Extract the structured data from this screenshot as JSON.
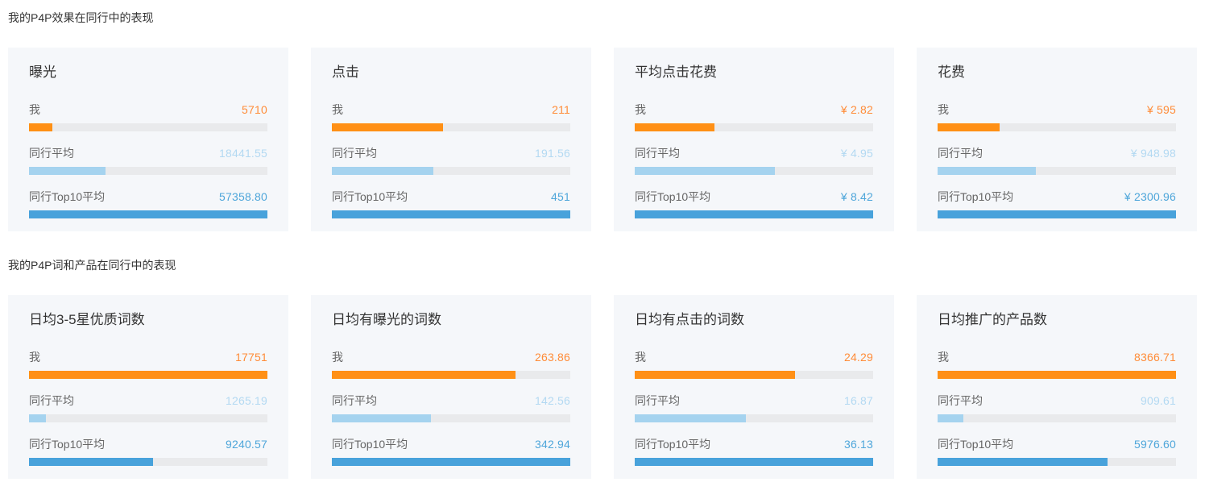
{
  "colors": {
    "me_bar": "#ff9015",
    "me_text": "#ff8c38",
    "avg_bar": "#a5d3ef",
    "avg_text": "#b3d9f2",
    "top10_bar": "#48a2db",
    "top10_text": "#4ea6da",
    "bar_track": "#e9eaec",
    "card_background": "#f5f7fa",
    "heading_text": "#333333",
    "label_text": "#666666"
  },
  "sections": [
    {
      "heading": "我的P4P效果在同行中的表现",
      "cards": [
        {
          "title": "曝光",
          "metrics": [
            {
              "label": "我",
              "value": "5710",
              "numeric": 5710,
              "series": "me"
            },
            {
              "label": "同行平均",
              "value": "18441.55",
              "numeric": 18441.55,
              "series": "avg"
            },
            {
              "label": "同行Top10平均",
              "value": "57358.80",
              "numeric": 57358.8,
              "series": "top10"
            }
          ]
        },
        {
          "title": "点击",
          "metrics": [
            {
              "label": "我",
              "value": "211",
              "numeric": 211,
              "series": "me"
            },
            {
              "label": "同行平均",
              "value": "191.56",
              "numeric": 191.56,
              "series": "avg"
            },
            {
              "label": "同行Top10平均",
              "value": "451",
              "numeric": 451,
              "series": "top10"
            }
          ]
        },
        {
          "title": "平均点击花费",
          "metrics": [
            {
              "label": "我",
              "value": "¥ 2.82",
              "numeric": 2.82,
              "series": "me"
            },
            {
              "label": "同行平均",
              "value": "¥ 4.95",
              "numeric": 4.95,
              "series": "avg"
            },
            {
              "label": "同行Top10平均",
              "value": "¥ 8.42",
              "numeric": 8.42,
              "series": "top10"
            }
          ]
        },
        {
          "title": "花费",
          "metrics": [
            {
              "label": "我",
              "value": "¥ 595",
              "numeric": 595,
              "series": "me"
            },
            {
              "label": "同行平均",
              "value": "¥ 948.98",
              "numeric": 948.98,
              "series": "avg"
            },
            {
              "label": "同行Top10平均",
              "value": "¥ 2300.96",
              "numeric": 2300.96,
              "series": "top10"
            }
          ]
        }
      ]
    },
    {
      "heading": "我的P4P词和产品在同行中的表现",
      "cards": [
        {
          "title": "日均3-5星优质词数",
          "metrics": [
            {
              "label": "我",
              "value": "17751",
              "numeric": 17751,
              "series": "me"
            },
            {
              "label": "同行平均",
              "value": "1265.19",
              "numeric": 1265.19,
              "series": "avg"
            },
            {
              "label": "同行Top10平均",
              "value": "9240.57",
              "numeric": 9240.57,
              "series": "top10"
            }
          ]
        },
        {
          "title": "日均有曝光的词数",
          "metrics": [
            {
              "label": "我",
              "value": "263.86",
              "numeric": 263.86,
              "series": "me"
            },
            {
              "label": "同行平均",
              "value": "142.56",
              "numeric": 142.56,
              "series": "avg"
            },
            {
              "label": "同行Top10平均",
              "value": "342.94",
              "numeric": 342.94,
              "series": "top10"
            }
          ]
        },
        {
          "title": "日均有点击的词数",
          "metrics": [
            {
              "label": "我",
              "value": "24.29",
              "numeric": 24.29,
              "series": "me"
            },
            {
              "label": "同行平均",
              "value": "16.87",
              "numeric": 16.87,
              "series": "avg"
            },
            {
              "label": "同行Top10平均",
              "value": "36.13",
              "numeric": 36.13,
              "series": "top10"
            }
          ]
        },
        {
          "title": "日均推广的产品数",
          "metrics": [
            {
              "label": "我",
              "value": "8366.71",
              "numeric": 8366.71,
              "series": "me"
            },
            {
              "label": "同行平均",
              "value": "909.61",
              "numeric": 909.61,
              "series": "avg"
            },
            {
              "label": "同行Top10平均",
              "value": "5976.60",
              "numeric": 5976.6,
              "series": "top10"
            }
          ]
        }
      ]
    }
  ],
  "chart_data": [
    {
      "type": "bar",
      "title": "曝光",
      "categories": [
        "我",
        "同行平均",
        "同行Top10平均"
      ],
      "values": [
        5710,
        18441.55,
        57358.8
      ],
      "orientation": "horizontal"
    },
    {
      "type": "bar",
      "title": "点击",
      "categories": [
        "我",
        "同行平均",
        "同行Top10平均"
      ],
      "values": [
        211,
        191.56,
        451
      ],
      "orientation": "horizontal"
    },
    {
      "type": "bar",
      "title": "平均点击花费",
      "categories": [
        "我",
        "同行平均",
        "同行Top10平均"
      ],
      "values": [
        2.82,
        4.95,
        8.42
      ],
      "unit": "¥",
      "orientation": "horizontal"
    },
    {
      "type": "bar",
      "title": "花费",
      "categories": [
        "我",
        "同行平均",
        "同行Top10平均"
      ],
      "values": [
        595,
        948.98,
        2300.96
      ],
      "unit": "¥",
      "orientation": "horizontal"
    },
    {
      "type": "bar",
      "title": "日均3-5星优质词数",
      "categories": [
        "我",
        "同行平均",
        "同行Top10平均"
      ],
      "values": [
        17751,
        1265.19,
        9240.57
      ],
      "orientation": "horizontal"
    },
    {
      "type": "bar",
      "title": "日均有曝光的词数",
      "categories": [
        "我",
        "同行平均",
        "同行Top10平均"
      ],
      "values": [
        263.86,
        142.56,
        342.94
      ],
      "orientation": "horizontal"
    },
    {
      "type": "bar",
      "title": "日均有点击的词数",
      "categories": [
        "我",
        "同行平均",
        "同行Top10平均"
      ],
      "values": [
        24.29,
        16.87,
        36.13
      ],
      "orientation": "horizontal"
    },
    {
      "type": "bar",
      "title": "日均推广的产品数",
      "categories": [
        "我",
        "同行平均",
        "同行Top10平均"
      ],
      "values": [
        8366.71,
        909.61,
        5976.6
      ],
      "orientation": "horizontal"
    }
  ]
}
